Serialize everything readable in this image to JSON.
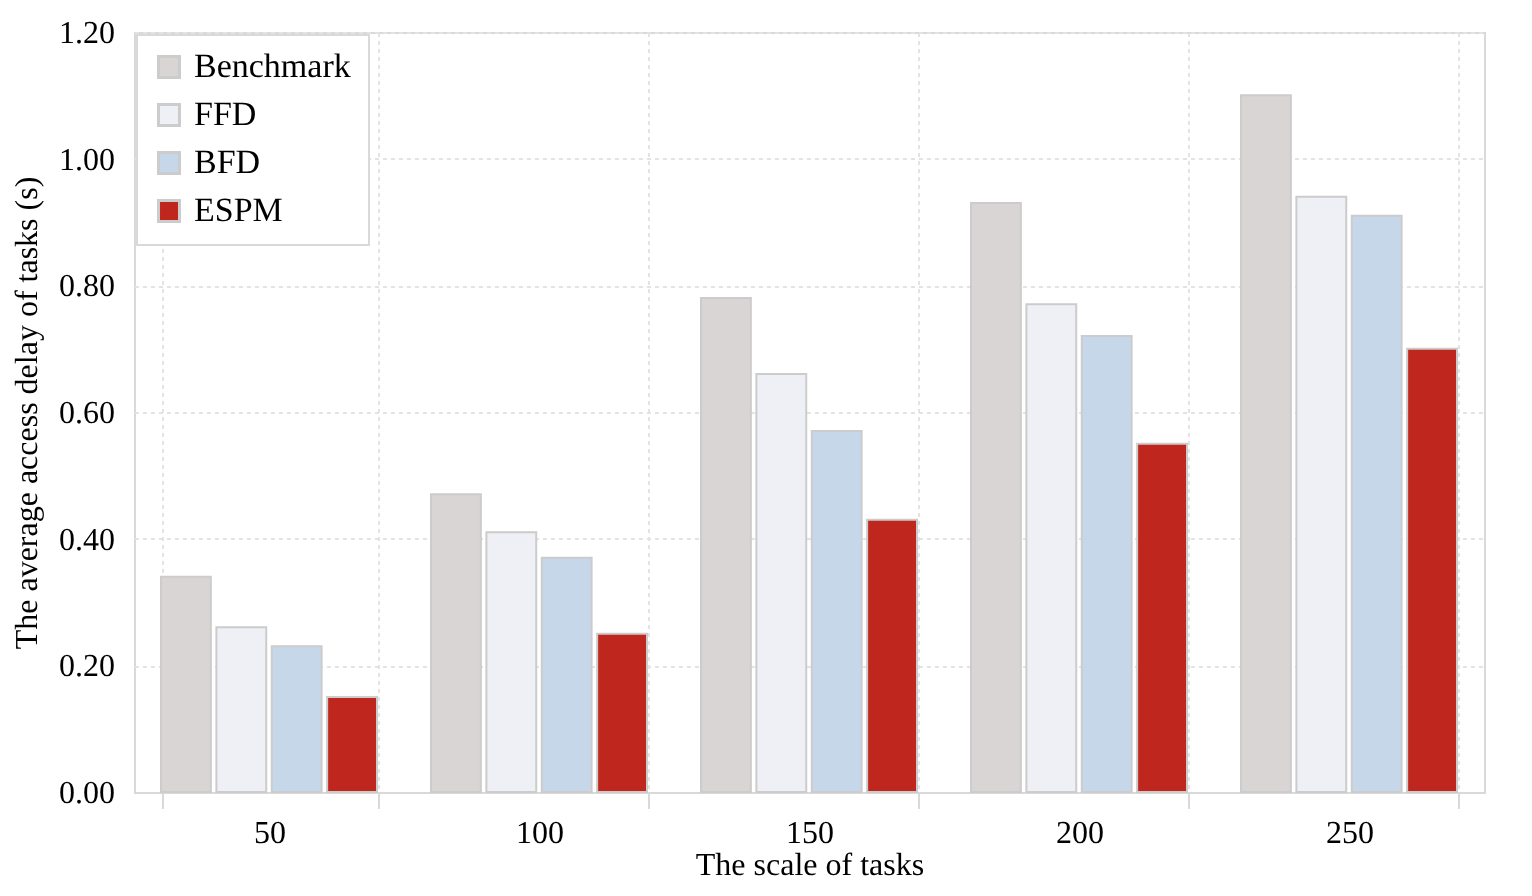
{
  "chart_data": {
    "type": "bar",
    "xlabel": "The scale of tasks",
    "ylabel": "The average access delay of tasks (s)",
    "categories": [
      "50",
      "100",
      "150",
      "200",
      "250"
    ],
    "series": [
      {
        "name": "Benchmark",
        "color": "#d9d5d5",
        "values": [
          0.34,
          0.47,
          0.78,
          0.93,
          1.1
        ]
      },
      {
        "name": "FFD",
        "color": "#eef0f6",
        "values": [
          0.26,
          0.41,
          0.66,
          0.77,
          0.94
        ]
      },
      {
        "name": "BFD",
        "color": "#c7d7ea",
        "values": [
          0.23,
          0.37,
          0.57,
          0.72,
          0.91
        ]
      },
      {
        "name": "ESPM",
        "color": "#bf271e",
        "values": [
          0.15,
          0.25,
          0.43,
          0.55,
          0.7
        ]
      }
    ],
    "ylim": [
      0,
      1.2
    ],
    "yticks": [
      {
        "value": 0,
        "label": "0.00"
      },
      {
        "value": 0.2,
        "label": "0.20"
      },
      {
        "value": 0.4,
        "label": "0.40"
      },
      {
        "value": 0.6,
        "label": "0.60"
      },
      {
        "value": 0.8,
        "label": "0.80"
      },
      {
        "value": 1.0,
        "label": "1.00"
      },
      {
        "value": 1.2,
        "label": "1.20"
      }
    ],
    "grid": true,
    "legend": "top left"
  }
}
